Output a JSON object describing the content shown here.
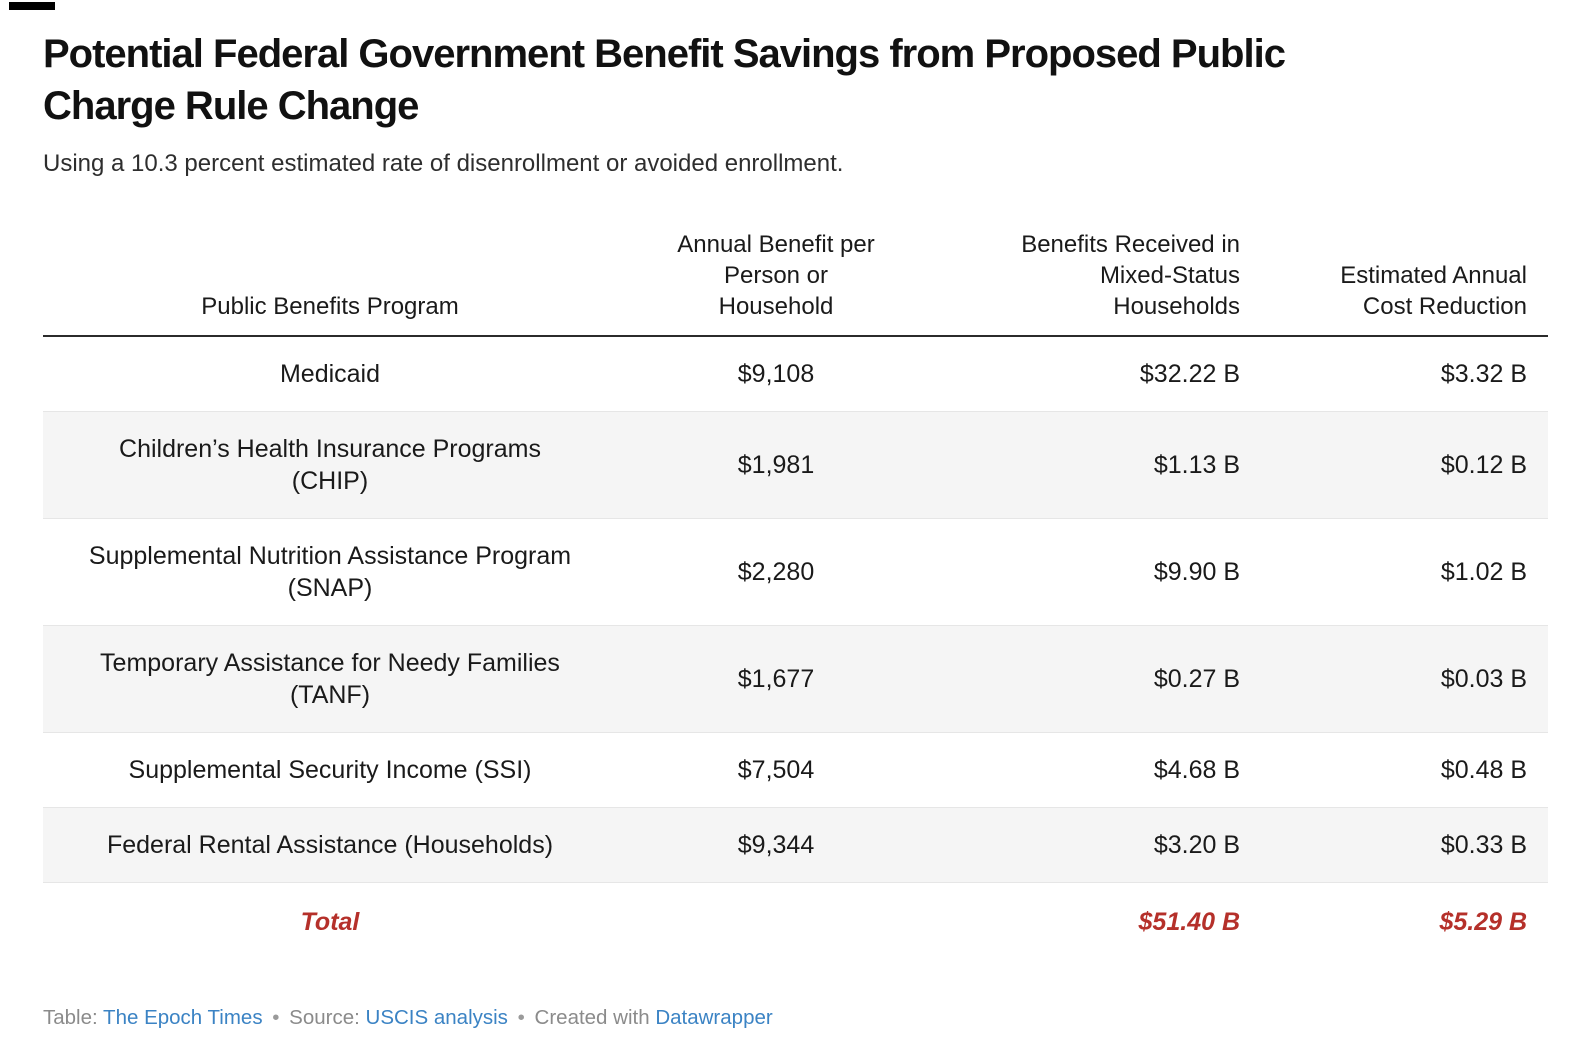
{
  "page": {
    "title": "Potential Federal Government Benefit Savings from Proposed Public\nCharge Rule Change",
    "subtitle": "Using a 10.3 percent estimated rate of disenrollment or avoided enrollment."
  },
  "chart_data": {
    "type": "table",
    "title": "Potential Federal Government Benefit Savings from Proposed Public Charge Rule Change",
    "subtitle": "Using a 10.3 percent estimated rate of disenrollment or avoided enrollment.",
    "columns": [
      {
        "label": "Public Benefits Program",
        "align": "center"
      },
      {
        "label": "Annual Benefit per\nPerson or\nHousehold",
        "align": "center"
      },
      {
        "label": "Benefits Received in\nMixed-Status\nHouseholds",
        "align": "right"
      },
      {
        "label": "Estimated Annual\nCost Reduction",
        "align": "right"
      }
    ],
    "rows": [
      {
        "program": "Medicaid",
        "annual_benefit": "$9,108",
        "benefits_received": "$32.22 B",
        "cost_reduction": "$3.32 B"
      },
      {
        "program": "Children’s Health Insurance Programs\n(CHIP)",
        "annual_benefit": "$1,981",
        "benefits_received": "$1.13 B",
        "cost_reduction": "$0.12 B"
      },
      {
        "program": "Supplemental Nutrition Assistance Program\n(SNAP)",
        "annual_benefit": "$2,280",
        "benefits_received": "$9.90 B",
        "cost_reduction": "$1.02 B"
      },
      {
        "program": "Temporary Assistance for Needy Families\n(TANF)",
        "annual_benefit": "$1,677",
        "benefits_received": "$0.27 B",
        "cost_reduction": "$0.03 B"
      },
      {
        "program": "Supplemental Security Income (SSI)",
        "annual_benefit": "$7,504",
        "benefits_received": "$4.68 B",
        "cost_reduction": "$0.48 B"
      },
      {
        "program": "Federal Rental Assistance (Households)",
        "annual_benefit": "$9,344",
        "benefits_received": "$3.20 B",
        "cost_reduction": "$0.33 B"
      }
    ],
    "total_row": {
      "label": "Total",
      "annual_benefit": "",
      "benefits_received": "$51.40 B",
      "cost_reduction": "$5.29 B"
    }
  },
  "footer": {
    "table_label": "Table:",
    "table_credit": "The Epoch Times",
    "separator": "•",
    "source_label": "Source:",
    "source_credit": "USCIS analysis",
    "created_label": "Created with",
    "created_credit": "Datawrapper"
  },
  "colors": {
    "total_accent": "#b5302a",
    "link_blue": "#3b83c4",
    "shaded_row": "#f5f5f5",
    "header_rule": "#2b2b2b"
  }
}
